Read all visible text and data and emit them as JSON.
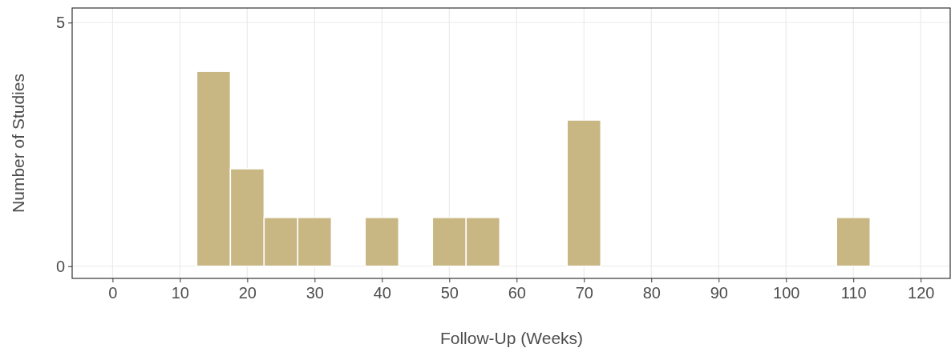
{
  "chart_data": {
    "type": "histogram",
    "xlabel": "Follow-Up (Weeks)",
    "ylabel": "Number of Studies",
    "bins": [
      -2.5,
      2.5,
      7.5,
      12.5,
      17.5,
      22.5,
      27.5,
      32.5,
      37.5,
      42.5,
      47.5,
      52.5,
      57.5,
      62.5,
      67.5,
      72.5,
      77.5,
      82.5,
      87.5,
      92.5,
      97.5,
      102.5,
      107.5,
      112.5,
      117.5,
      122.5
    ],
    "values": [
      0,
      0,
      0,
      4,
      2,
      1,
      1,
      0,
      1,
      0,
      1,
      1,
      0,
      0,
      3,
      0,
      0,
      0,
      0,
      0,
      0,
      0,
      1,
      0,
      0
    ],
    "color": "#c8b683",
    "xlim": [
      -6,
      124.5
    ],
    "xticks": [
      0,
      10,
      20,
      30,
      40,
      50,
      60,
      70,
      80,
      90,
      100,
      110,
      120
    ],
    "ylim": [
      -0.25,
      5.3
    ],
    "yticks": [
      0,
      5
    ],
    "grid": true
  }
}
